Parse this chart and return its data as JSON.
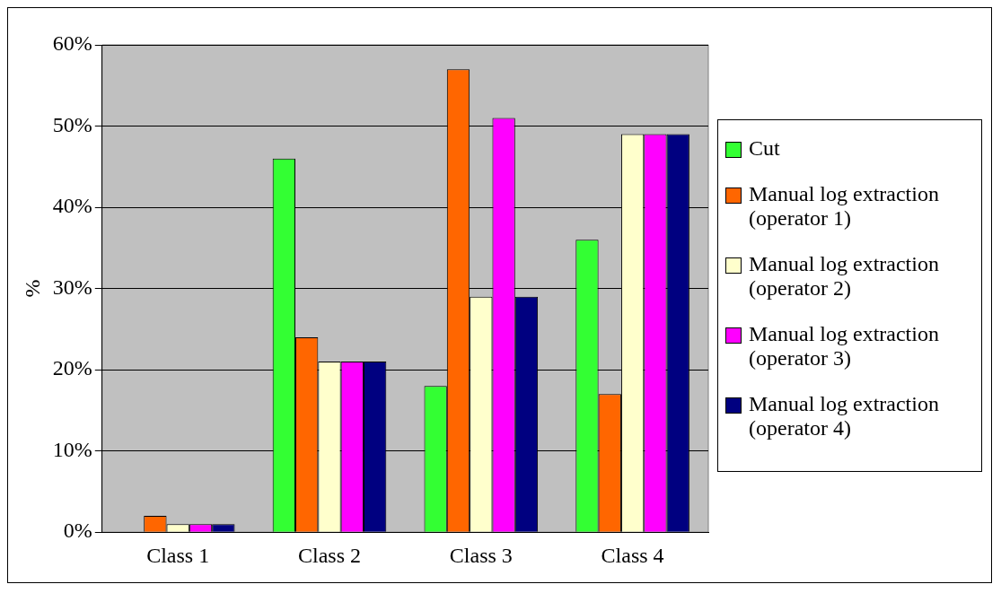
{
  "chart_data": {
    "type": "bar",
    "ylabel": "%",
    "categories": [
      "Class 1",
      "Class 2",
      "Class 3",
      "Class 4"
    ],
    "series": [
      {
        "name": "Cut",
        "color": "#33ff33",
        "values": [
          0,
          46,
          18,
          36
        ]
      },
      {
        "name": "Manual log extraction (operator 1)",
        "color": "#ff6600",
        "values": [
          2,
          24,
          57,
          17
        ]
      },
      {
        "name": "Manual log extraction (operator 2)",
        "color": "#ffffcc",
        "values": [
          1,
          21,
          29,
          49
        ]
      },
      {
        "name": "Manual log extraction (operator 3)",
        "color": "#ff00ff",
        "values": [
          1,
          21,
          51,
          49
        ]
      },
      {
        "name": "Manual log extraction (operator 4)",
        "color": "#000080",
        "values": [
          1,
          21,
          29,
          49
        ]
      }
    ],
    "ylim": [
      0,
      60
    ],
    "yticks": [
      {
        "value": 0,
        "label": "0%"
      },
      {
        "value": 10,
        "label": "10%"
      },
      {
        "value": 20,
        "label": "20%"
      },
      {
        "value": 30,
        "label": "30%"
      },
      {
        "value": 40,
        "label": "40%"
      },
      {
        "value": 50,
        "label": "50%"
      },
      {
        "value": 60,
        "label": "60%"
      }
    ],
    "grid": "y",
    "legend": "right"
  }
}
